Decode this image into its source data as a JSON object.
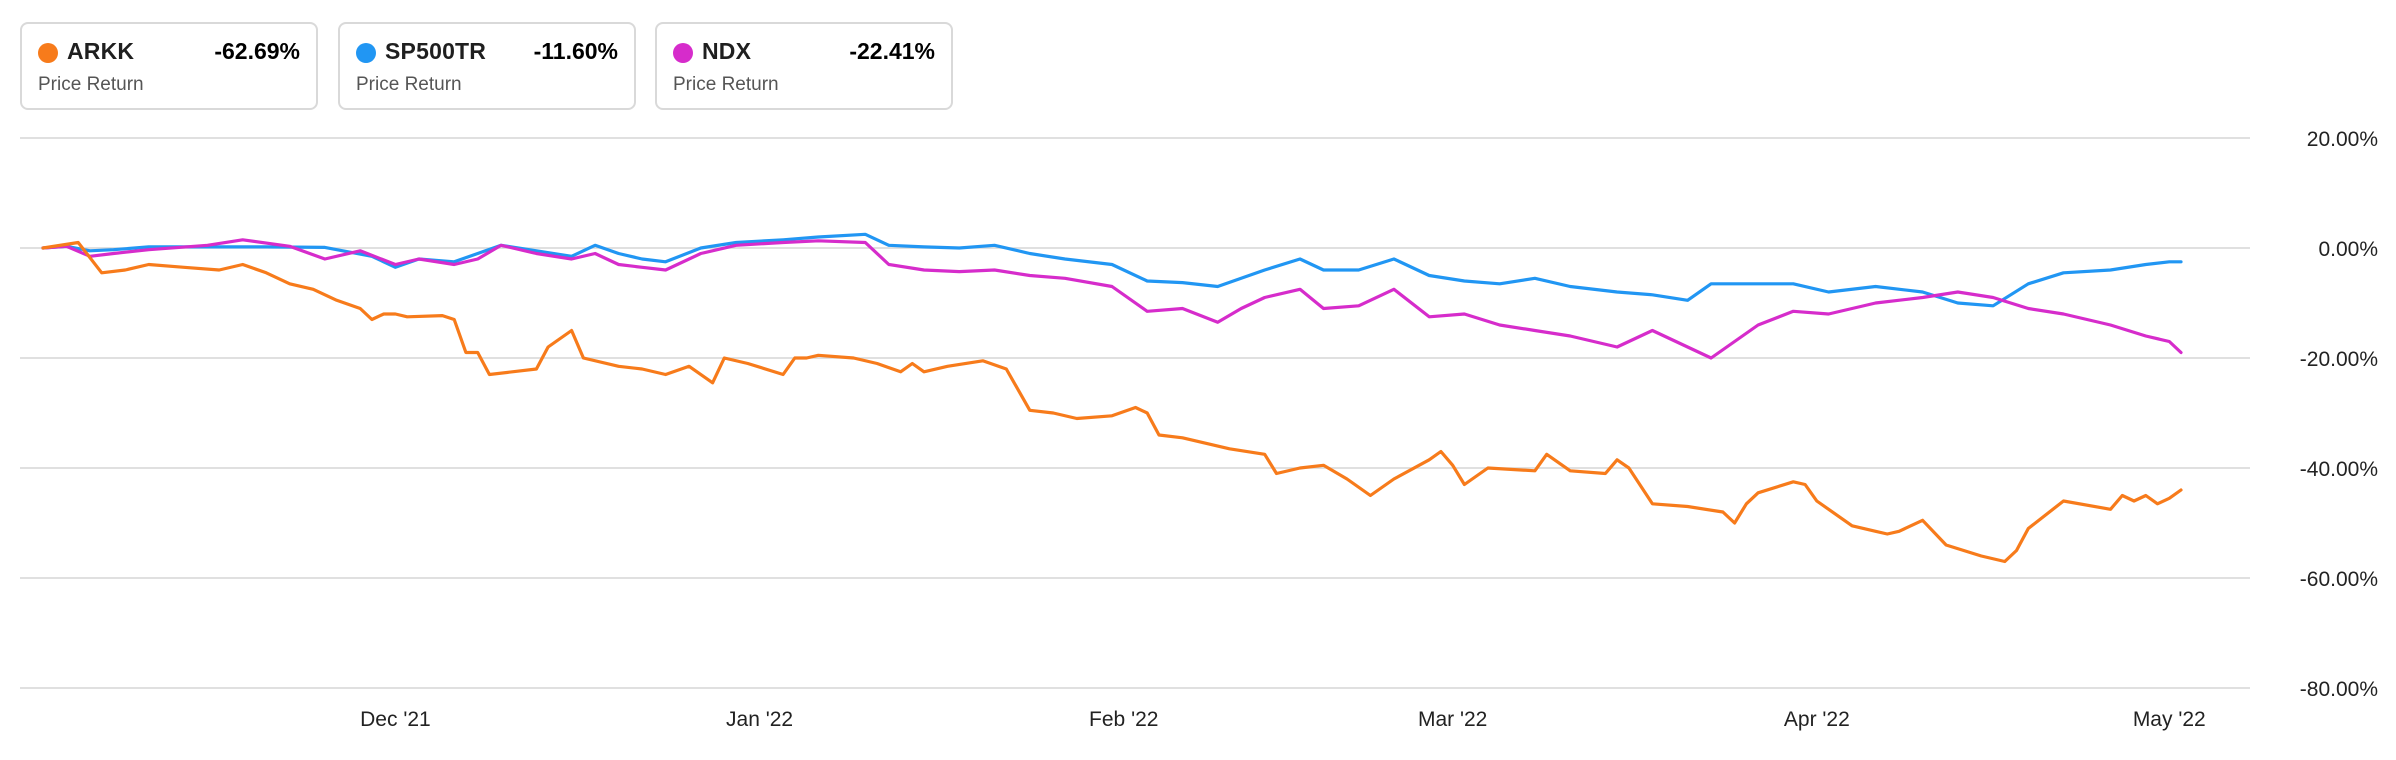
{
  "legend": [
    {
      "symbol": "ARKK",
      "value": "-62.69%",
      "subtitle": "Price Return",
      "color": "#f77b1b"
    },
    {
      "symbol": "SP500TR",
      "value": "-11.60%",
      "subtitle": "Price Return",
      "color": "#2196f3"
    },
    {
      "symbol": "NDX",
      "value": "-22.41%",
      "subtitle": "Price Return",
      "color": "#d62ccb"
    }
  ],
  "chart_data": {
    "type": "line",
    "title": "",
    "xlabel": "",
    "ylabel": "",
    "x_start": "2021-11-01",
    "x_end": "2022-05-06",
    "ylim": [
      -80,
      20
    ],
    "y_ticks": [
      20,
      0,
      -20,
      -40,
      -60,
      -80
    ],
    "y_tick_labels": [
      "20.00%",
      "0.00%",
      "-20.00%",
      "-40.00%",
      "-60.00%",
      "-80.00%"
    ],
    "x_ticks": [
      {
        "date": "2021-12-01",
        "label": "Dec '21"
      },
      {
        "date": "2022-01-01",
        "label": "Jan '22"
      },
      {
        "date": "2022-02-01",
        "label": "Feb '22"
      },
      {
        "date": "2022-03-01",
        "label": "Mar '22"
      },
      {
        "date": "2022-04-01",
        "label": "Apr '22"
      },
      {
        "date": "2022-05-01",
        "label": "May '22"
      }
    ],
    "grid": true,
    "legend_position": "top-left",
    "series": [
      {
        "name": "ARKK",
        "color": "#f77b1b",
        "points": [
          [
            "2021-11-01",
            0
          ],
          [
            "2021-11-04",
            1
          ],
          [
            "2021-11-06",
            -4.5
          ],
          [
            "2021-11-08",
            -4
          ],
          [
            "2021-11-10",
            -3
          ],
          [
            "2021-11-13",
            -3.5
          ],
          [
            "2021-11-16",
            -4
          ],
          [
            "2021-11-18",
            -3
          ],
          [
            "2021-11-20",
            -4.5
          ],
          [
            "2021-11-22",
            -6.5
          ],
          [
            "2021-11-24",
            -7.5
          ],
          [
            "2021-11-26",
            -9.5
          ],
          [
            "2021-11-28",
            -11
          ],
          [
            "2021-11-29",
            -13
          ],
          [
            "2021-11-30",
            -12
          ],
          [
            "2021-12-01",
            -12
          ],
          [
            "2021-12-02",
            -12.5
          ],
          [
            "2021-12-05",
            -12.3
          ],
          [
            "2021-12-06",
            -13
          ],
          [
            "2021-12-07",
            -19
          ],
          [
            "2021-12-08",
            -19
          ],
          [
            "2021-12-09",
            -23
          ],
          [
            "2021-12-13",
            -22
          ],
          [
            "2021-12-14",
            -18
          ],
          [
            "2021-12-16",
            -15
          ],
          [
            "2021-12-17",
            -20
          ],
          [
            "2021-12-20",
            -21.5
          ],
          [
            "2021-12-22",
            -22
          ],
          [
            "2021-12-24",
            -23
          ],
          [
            "2021-12-26",
            -21.5
          ],
          [
            "2021-12-28",
            -24.5
          ],
          [
            "2021-12-29",
            -20
          ],
          [
            "2021-12-31",
            -21
          ],
          [
            "2022-01-03",
            -23
          ],
          [
            "2022-01-04",
            -20
          ],
          [
            "2022-01-05",
            -20
          ],
          [
            "2022-01-06",
            -19.5
          ],
          [
            "2022-01-09",
            -20
          ],
          [
            "2022-01-11",
            -21
          ],
          [
            "2022-01-13",
            -22.5
          ],
          [
            "2022-01-14",
            -21
          ],
          [
            "2022-01-15",
            -22.5
          ],
          [
            "2022-01-17",
            -21.5
          ],
          [
            "2022-01-20",
            -20.5
          ],
          [
            "2022-01-22",
            -22
          ],
          [
            "2022-01-24",
            -29.5
          ],
          [
            "2022-01-26",
            -30
          ],
          [
            "2022-01-28",
            -31
          ],
          [
            "2022-01-31",
            -30.5
          ],
          [
            "2022-02-02",
            -29
          ],
          [
            "2022-02-03",
            -30
          ],
          [
            "2022-02-04",
            -34
          ],
          [
            "2022-02-06",
            -34.5
          ],
          [
            "2022-02-10",
            -36.5
          ],
          [
            "2022-02-13",
            -37.5
          ],
          [
            "2022-02-14",
            -41
          ],
          [
            "2022-02-16",
            -40
          ],
          [
            "2022-02-18",
            -39.5
          ],
          [
            "2022-02-20",
            -42
          ],
          [
            "2022-02-22",
            -45
          ],
          [
            "2022-02-24",
            -42
          ],
          [
            "2022-02-27",
            -38.5
          ],
          [
            "2022-02-28",
            -37
          ],
          [
            "2022-03-01",
            -39.5
          ],
          [
            "2022-03-02",
            -43
          ],
          [
            "2022-03-04",
            -40
          ],
          [
            "2022-03-08",
            -40.5
          ],
          [
            "2022-03-09",
            -37.5
          ],
          [
            "2022-03-11",
            -40.5
          ],
          [
            "2022-03-14",
            -41
          ],
          [
            "2022-03-15",
            -38.5
          ],
          [
            "2022-03-16",
            -40
          ],
          [
            "2022-03-18",
            -46.5
          ],
          [
            "2022-03-21",
            -47
          ],
          [
            "2022-03-24",
            -48
          ],
          [
            "2022-03-25",
            -50
          ],
          [
            "2022-03-26",
            -46.5
          ],
          [
            "2022-03-27",
            -44.5
          ],
          [
            "2022-03-30",
            -42.5
          ],
          [
            "2022-03-31",
            -43
          ],
          [
            "2022-04-01",
            -46
          ],
          [
            "2022-04-04",
            -50.5
          ],
          [
            "2022-04-06",
            -51.5
          ],
          [
            "2022-04-07",
            -52
          ],
          [
            "2022-04-08",
            -51.5
          ],
          [
            "2022-04-10",
            -49.5
          ],
          [
            "2022-04-12",
            -54
          ],
          [
            "2022-04-15",
            -56
          ],
          [
            "2022-04-17",
            -57
          ],
          [
            "2022-04-18",
            -55
          ],
          [
            "2022-04-19",
            -51
          ],
          [
            "2022-04-22",
            -46
          ],
          [
            "2022-04-26",
            -47.5
          ],
          [
            "2022-04-27",
            -45
          ],
          [
            "2022-04-28",
            -46
          ],
          [
            "2022-04-29",
            -45
          ],
          [
            "2022-04-30",
            -46.5
          ],
          [
            "2022-05-01",
            -45.5
          ],
          [
            "2022-05-02",
            -44
          ]
        ]
      },
      {
        "name": "SP500TR",
        "color": "#2196f3",
        "points": [
          [
            "2021-11-01",
            0
          ],
          [
            "2021-11-03",
            0.3
          ],
          [
            "2021-11-05",
            -0.5
          ],
          [
            "2021-11-07",
            -0.3
          ],
          [
            "2021-11-10",
            0.2
          ],
          [
            "2021-11-15",
            0.2
          ],
          [
            "2021-11-20",
            0.2
          ],
          [
            "2021-11-25",
            0.1
          ],
          [
            "2021-11-29",
            -1.5
          ],
          [
            "2021-12-01",
            -3.5
          ],
          [
            "2021-12-03",
            -2
          ],
          [
            "2021-12-06",
            -2.5
          ],
          [
            "2021-12-08",
            -1
          ],
          [
            "2021-12-10",
            0.5
          ],
          [
            "2021-12-13",
            -0.5
          ],
          [
            "2021-12-16",
            -1.5
          ],
          [
            "2021-12-18",
            0.5
          ],
          [
            "2021-12-20",
            -1
          ],
          [
            "2021-12-22",
            -2
          ],
          [
            "2021-12-24",
            -2.5
          ],
          [
            "2021-12-27",
            0
          ],
          [
            "2021-12-30",
            1
          ],
          [
            "2022-01-03",
            1.5
          ],
          [
            "2022-01-06",
            2
          ],
          [
            "2022-01-10",
            2.5
          ],
          [
            "2022-01-12",
            0.5
          ],
          [
            "2022-01-15",
            0.2
          ],
          [
            "2022-01-18",
            0
          ],
          [
            "2022-01-21",
            0.5
          ],
          [
            "2022-01-24",
            -1
          ],
          [
            "2022-01-27",
            -2
          ],
          [
            "2022-01-31",
            -3
          ],
          [
            "2022-02-03",
            -6
          ],
          [
            "2022-02-06",
            -6.3
          ],
          [
            "2022-02-09",
            -7
          ],
          [
            "2022-02-11",
            -5.5
          ],
          [
            "2022-02-13",
            -4
          ],
          [
            "2022-02-16",
            -2
          ],
          [
            "2022-02-18",
            -4
          ],
          [
            "2022-02-21",
            -4
          ],
          [
            "2022-02-24",
            -2
          ],
          [
            "2022-02-27",
            -5
          ],
          [
            "2022-03-02",
            -6
          ],
          [
            "2022-03-05",
            -6.5
          ],
          [
            "2022-03-08",
            -5.5
          ],
          [
            "2022-03-11",
            -7
          ],
          [
            "2022-03-15",
            -8
          ],
          [
            "2022-03-18",
            -8.5
          ],
          [
            "2022-03-21",
            -9.5
          ],
          [
            "2022-03-23",
            -6.5
          ],
          [
            "2022-03-27",
            -6.5
          ],
          [
            "2022-03-30",
            -6.5
          ],
          [
            "2022-04-02",
            -8
          ],
          [
            "2022-04-06",
            -7
          ],
          [
            "2022-04-10",
            -8
          ],
          [
            "2022-04-13",
            -10
          ],
          [
            "2022-04-16",
            -10.5
          ],
          [
            "2022-04-19",
            -6.5
          ],
          [
            "2022-04-22",
            -4.5
          ],
          [
            "2022-04-26",
            -4
          ],
          [
            "2022-04-29",
            -3
          ],
          [
            "2022-05-01",
            -2.5
          ],
          [
            "2022-05-02",
            -2.5
          ]
        ]
      },
      {
        "name": "NDX",
        "color": "#d62ccb",
        "points": [
          [
            "2021-11-01",
            0
          ],
          [
            "2021-11-03",
            0.3
          ],
          [
            "2021-11-05",
            -1.5
          ],
          [
            "2021-11-07",
            -1
          ],
          [
            "2021-11-10",
            -0.3
          ],
          [
            "2021-11-15",
            0.5
          ],
          [
            "2021-11-18",
            1.5
          ],
          [
            "2021-11-22",
            0.3
          ],
          [
            "2021-11-25",
            -2
          ],
          [
            "2021-11-28",
            -0.5
          ],
          [
            "2021-12-01",
            -3
          ],
          [
            "2021-12-03",
            -2
          ],
          [
            "2021-12-06",
            -3
          ],
          [
            "2021-12-08",
            -2
          ],
          [
            "2021-12-10",
            0.5
          ],
          [
            "2021-12-13",
            -1
          ],
          [
            "2021-12-16",
            -2
          ],
          [
            "2021-12-18",
            -1
          ],
          [
            "2021-12-20",
            -3
          ],
          [
            "2021-12-22",
            -3.5
          ],
          [
            "2021-12-24",
            -4
          ],
          [
            "2021-12-27",
            -1
          ],
          [
            "2021-12-30",
            0.5
          ],
          [
            "2022-01-03",
            1
          ],
          [
            "2022-01-06",
            1.3
          ],
          [
            "2022-01-10",
            1
          ],
          [
            "2022-01-12",
            -3
          ],
          [
            "2022-01-15",
            -4
          ],
          [
            "2022-01-18",
            -4.3
          ],
          [
            "2022-01-21",
            -4
          ],
          [
            "2022-01-24",
            -5
          ],
          [
            "2022-01-27",
            -5.5
          ],
          [
            "2022-01-31",
            -7
          ],
          [
            "2022-02-03",
            -11.5
          ],
          [
            "2022-02-06",
            -11
          ],
          [
            "2022-02-09",
            -13.5
          ],
          [
            "2022-02-11",
            -11
          ],
          [
            "2022-02-13",
            -9
          ],
          [
            "2022-02-16",
            -7.5
          ],
          [
            "2022-02-18",
            -11
          ],
          [
            "2022-02-21",
            -10.5
          ],
          [
            "2022-02-24",
            -7.5
          ],
          [
            "2022-02-27",
            -12.5
          ],
          [
            "2022-03-02",
            -12
          ],
          [
            "2022-03-05",
            -14
          ],
          [
            "2022-03-08",
            -15
          ],
          [
            "2022-03-11",
            -16
          ],
          [
            "2022-03-15",
            -18
          ],
          [
            "2022-03-18",
            -15
          ],
          [
            "2022-03-21",
            -18
          ],
          [
            "2022-03-23",
            -20
          ],
          [
            "2022-03-27",
            -14
          ],
          [
            "2022-03-30",
            -11.5
          ],
          [
            "2022-04-02",
            -12
          ],
          [
            "2022-04-06",
            -10
          ],
          [
            "2022-04-10",
            -9
          ],
          [
            "2022-04-13",
            -8
          ],
          [
            "2022-04-16",
            -9
          ],
          [
            "2022-04-19",
            -11
          ],
          [
            "2022-04-22",
            -12
          ],
          [
            "2022-04-26",
            -14
          ],
          [
            "2022-04-29",
            -16
          ],
          [
            "2022-05-01",
            -17
          ],
          [
            "2022-05-02",
            -19
          ]
        ]
      }
    ]
  }
}
